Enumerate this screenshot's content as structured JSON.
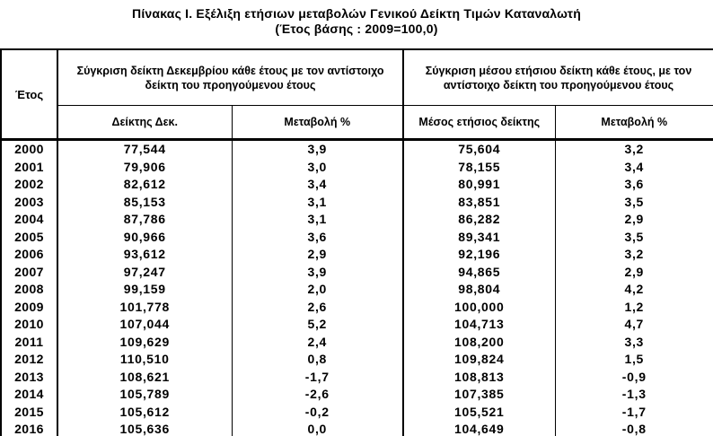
{
  "title": {
    "line1": "Πίνακας Ι. Εξέλιξη ετήσιων μεταβολών Γενικού Δείκτη Τιμών Καταναλωτή",
    "line2": "(Έτος βάσης : 2009=100,0)"
  },
  "table": {
    "headers": {
      "year": "Έτος",
      "group_december": "Σύγκριση δείκτη Δεκεμβρίου κάθε έτους με τον αντίστοιχο\nδείκτη του προηγούμενου έτους",
      "group_annual": "Σύγκριση μέσου ετήσιου δείκτη κάθε έτους, με τον\nαντίστοιχο δείκτη του προηγούμενου έτους",
      "dec_index": "Δείκτης Δεκ.",
      "dec_change": "Μεταβολή %",
      "avg_index": "Μέσος ετήσιος δείκτης",
      "avg_change": "Μεταβολή %"
    },
    "rows": [
      {
        "year": "2000",
        "dec_index": "77,544",
        "dec_change": "3,9",
        "avg_index": "75,604",
        "avg_change": "3,2"
      },
      {
        "year": "2001",
        "dec_index": "79,906",
        "dec_change": "3,0",
        "avg_index": "78,155",
        "avg_change": "3,4"
      },
      {
        "year": "2002",
        "dec_index": "82,612",
        "dec_change": "3,4",
        "avg_index": "80,991",
        "avg_change": "3,6"
      },
      {
        "year": "2003",
        "dec_index": "85,153",
        "dec_change": "3,1",
        "avg_index": "83,851",
        "avg_change": "3,5"
      },
      {
        "year": "2004",
        "dec_index": "87,786",
        "dec_change": "3,1",
        "avg_index": "86,282",
        "avg_change": "2,9"
      },
      {
        "year": "2005",
        "dec_index": "90,966",
        "dec_change": "3,6",
        "avg_index": "89,341",
        "avg_change": "3,5"
      },
      {
        "year": "2006",
        "dec_index": "93,612",
        "dec_change": "2,9",
        "avg_index": "92,196",
        "avg_change": "3,2"
      },
      {
        "year": "2007",
        "dec_index": "97,247",
        "dec_change": "3,9",
        "avg_index": "94,865",
        "avg_change": "2,9"
      },
      {
        "year": "2008",
        "dec_index": "99,159",
        "dec_change": "2,0",
        "avg_index": "98,804",
        "avg_change": "4,2"
      },
      {
        "year": "2009",
        "dec_index": "101,778",
        "dec_change": "2,6",
        "avg_index": "100,000",
        "avg_change": "1,2"
      },
      {
        "year": "2010",
        "dec_index": "107,044",
        "dec_change": "5,2",
        "avg_index": "104,713",
        "avg_change": "4,7"
      },
      {
        "year": "2011",
        "dec_index": "109,629",
        "dec_change": "2,4",
        "avg_index": "108,200",
        "avg_change": "3,3"
      },
      {
        "year": "2012",
        "dec_index": "110,510",
        "dec_change": "0,8",
        "avg_index": "109,824",
        "avg_change": "1,5"
      },
      {
        "year": "2013",
        "dec_index": "108,621",
        "dec_change": "-1,7",
        "avg_index": "108,813",
        "avg_change": "-0,9"
      },
      {
        "year": "2014",
        "dec_index": "105,789",
        "dec_change": "-2,6",
        "avg_index": "107,385",
        "avg_change": "-1,3"
      },
      {
        "year": "2015",
        "dec_index": "105,612",
        "dec_change": "-0,2",
        "avg_index": "105,521",
        "avg_change": "-1,7"
      },
      {
        "year": "2016",
        "dec_index": "105,636",
        "dec_change": "0,0",
        "avg_index": "104,649",
        "avg_change": "-0,8"
      }
    ]
  },
  "chart_data": {
    "type": "table",
    "title": "Πίνακας Ι. Εξέλιξη ετήσιων μεταβολών Γενικού Δείκτη Τιμών Καταναλωτή (Έτος βάσης : 2009=100,0)",
    "columns": [
      "Έτος",
      "Δείκτης Δεκ.",
      "Μεταβολή % (Δεκ.)",
      "Μέσος ετήσιος δείκτης",
      "Μεταβολή % (μέσος)"
    ],
    "x": [
      2000,
      2001,
      2002,
      2003,
      2004,
      2005,
      2006,
      2007,
      2008,
      2009,
      2010,
      2011,
      2012,
      2013,
      2014,
      2015,
      2016
    ],
    "series": [
      {
        "name": "Δείκτης Δεκεμβρίου",
        "values": [
          77.544,
          79.906,
          82.612,
          85.153,
          87.786,
          90.966,
          93.612,
          97.247,
          99.159,
          101.778,
          107.044,
          109.629,
          110.51,
          108.621,
          105.789,
          105.612,
          105.636
        ]
      },
      {
        "name": "Μεταβολή % Δεκεμβρίου",
        "values": [
          3.9,
          3.0,
          3.4,
          3.1,
          3.1,
          3.6,
          2.9,
          3.9,
          2.0,
          2.6,
          5.2,
          2.4,
          0.8,
          -1.7,
          -2.6,
          -0.2,
          0.0
        ]
      },
      {
        "name": "Μέσος ετήσιος δείκτης",
        "values": [
          75.604,
          78.155,
          80.991,
          83.851,
          86.282,
          89.341,
          92.196,
          94.865,
          98.804,
          100.0,
          104.713,
          108.2,
          109.824,
          108.813,
          107.385,
          105.521,
          104.649
        ]
      },
      {
        "name": "Μεταβολή % μέσου ετήσιου",
        "values": [
          3.2,
          3.4,
          3.6,
          3.5,
          2.9,
          3.5,
          3.2,
          2.9,
          4.2,
          1.2,
          4.7,
          3.3,
          1.5,
          -0.9,
          -1.3,
          -1.7,
          -0.8
        ]
      }
    ]
  },
  "colors": {
    "text": "#000000",
    "border": "#000000",
    "background": "#ffffff"
  }
}
